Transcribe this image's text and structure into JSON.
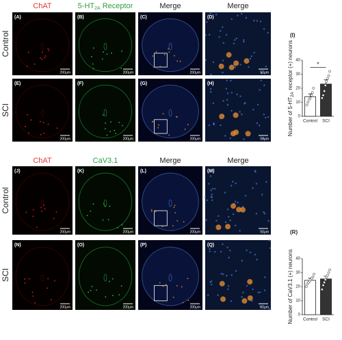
{
  "sections": [
    {
      "headers": [
        {
          "text": "ChAT",
          "color": "#e53935"
        },
        {
          "text": "5-HT",
          "sub": "2A",
          "rest": "Receptor",
          "color": "#2e9e3e"
        },
        {
          "text": "Merge",
          "color": "#222222"
        },
        {
          "text": "Merge",
          "color": "#222222"
        }
      ],
      "rows": [
        {
          "label": "Control",
          "panels": [
            {
              "label": "(A)",
              "scale": "200μm"
            },
            {
              "label": "(B)",
              "scale": "200μm"
            },
            {
              "label": "(C)",
              "scale": "200μm"
            },
            {
              "label": "(D)",
              "scale": "50μm"
            }
          ]
        },
        {
          "label": "SCI",
          "panels": [
            {
              "label": "(E)",
              "scale": "200μm"
            },
            {
              "label": "(F)",
              "scale": "200μm"
            },
            {
              "label": "(G)",
              "scale": "200μm"
            },
            {
              "label": "(H)",
              "scale": "50μm"
            }
          ]
        }
      ]
    },
    {
      "headers": [
        {
          "text": "ChAT",
          "color": "#e53935"
        },
        {
          "text": "CaV3.1",
          "color": "#2e9e3e"
        },
        {
          "text": "Merge",
          "color": "#222222"
        },
        {
          "text": "Merge",
          "color": "#222222"
        }
      ],
      "rows": [
        {
          "label": "Control",
          "panels": [
            {
              "label": "(J)",
              "scale": "200μm"
            },
            {
              "label": "(K)",
              "scale": "200μm"
            },
            {
              "label": "(L)",
              "scale": "200μm"
            },
            {
              "label": "(M)",
              "scale": "50μm"
            }
          ]
        },
        {
          "label": "SCI",
          "panels": [
            {
              "label": "(N)",
              "scale": "200μm"
            },
            {
              "label": "(O)",
              "scale": "200μm"
            },
            {
              "label": "(P)",
              "scale": "200μm"
            },
            {
              "label": "(Q)",
              "scale": "50μm"
            }
          ]
        }
      ]
    }
  ],
  "chart_data": [
    {
      "type": "bar",
      "panel_label": "(I)",
      "y_label": "Number of 5-HT",
      "y_label_sub": "2A",
      "y_label_rest": "receptor (+) neurons",
      "categories": [
        "Control",
        "SCI"
      ],
      "values": [
        14,
        23
      ],
      "errors": [
        2,
        3
      ],
      "colors": [
        "#ffffff",
        "#333333"
      ],
      "points": [
        [
          8,
          10,
          12,
          13,
          15,
          17,
          20
        ],
        [
          13,
          15,
          18,
          22,
          25,
          27,
          29,
          32
        ]
      ],
      "significance": "*",
      "ylim": [
        0,
        40
      ],
      "yticks": [
        0,
        10,
        20,
        30,
        40
      ]
    },
    {
      "type": "bar",
      "panel_label": "(R)",
      "y_label": "Number of CaV3.1 (+) neurons",
      "categories": [
        "Control",
        "SCI"
      ],
      "values": [
        24.5,
        25.5
      ],
      "errors": [
        1.5,
        2
      ],
      "colors": [
        "#ffffff",
        "#333333"
      ],
      "points": [
        [
          20,
          22,
          23,
          24,
          25,
          26,
          27,
          29
        ],
        [
          18,
          21,
          23,
          25,
          27,
          28,
          30,
          32
        ]
      ],
      "ylim": [
        0,
        40
      ],
      "yticks": [
        0,
        10,
        20,
        30,
        40
      ]
    }
  ]
}
